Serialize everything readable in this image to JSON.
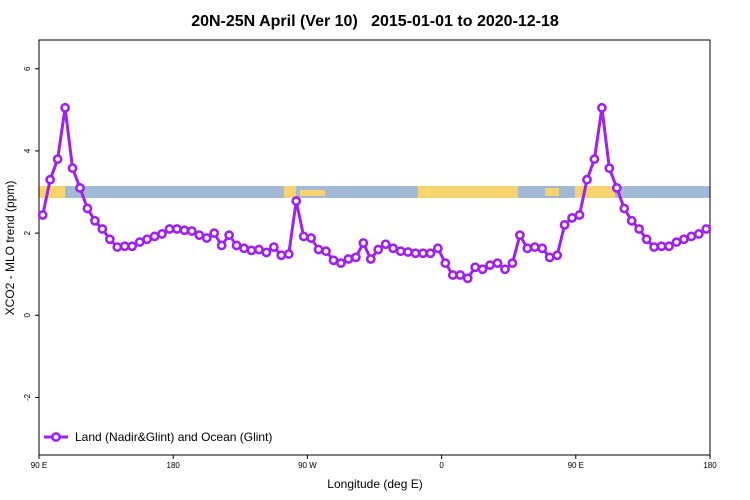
{
  "chart_data": {
    "type": "line",
    "title": "20N-25N April (Ver 10)   2015-01-01 to 2020-12-18",
    "x_label": "Longitude (deg E)",
    "y_label": "XCO2 - MLO trend (ppm)",
    "x": [
      92.5,
      97.5,
      102.5,
      107.5,
      112.5,
      117.5,
      122.5,
      127.5,
      132.5,
      137.5,
      142.5,
      147.5,
      152.5,
      157.5,
      162.5,
      167.5,
      172.5,
      177.5,
      182.5,
      187.5,
      192.5,
      197.5,
      202.5,
      207.5,
      212.5,
      217.5,
      222.5,
      227.5,
      232.5,
      237.5,
      242.5,
      247.5,
      252.5,
      257.5,
      262.5,
      267.5,
      272.5,
      277.5,
      282.5,
      287.5,
      292.5,
      297.5,
      302.5,
      307.5,
      312.5,
      317.5,
      322.5,
      327.5,
      332.5,
      337.5,
      342.5,
      347.5,
      352.5,
      357.5,
      362.5,
      367.5,
      372.5,
      377.5,
      382.5,
      387.5,
      392.5,
      397.5,
      402.5,
      407.5,
      412.5,
      417.5,
      422.5,
      427.5,
      432.5,
      437.5,
      442.5,
      447.5,
      452.5,
      457.5,
      462.5,
      467.5,
      472.5,
      477.5,
      482.5,
      487.5,
      492.5,
      497.5,
      502.5,
      507.5,
      512.5,
      517.5,
      522.5,
      527.5,
      532.5,
      537.5
    ],
    "series": [
      {
        "name": "Land (Nadir&Glint) and Ocean (Glint)",
        "color": "#a020f0",
        "values": [
          2.44,
          3.3,
          3.8,
          5.05,
          3.58,
          3.1,
          2.6,
          2.3,
          2.1,
          1.85,
          1.66,
          1.68,
          1.68,
          1.78,
          1.85,
          1.92,
          1.98,
          2.1,
          2.1,
          2.07,
          2.05,
          1.95,
          1.88,
          2.0,
          1.7,
          1.95,
          1.7,
          1.63,
          1.58,
          1.6,
          1.53,
          1.66,
          1.46,
          1.49,
          2.78,
          1.92,
          1.88,
          1.6,
          1.56,
          1.34,
          1.27,
          1.37,
          1.41,
          1.76,
          1.37,
          1.6,
          1.73,
          1.63,
          1.56,
          1.54,
          1.51,
          1.51,
          1.51,
          1.63,
          1.27,
          0.98,
          0.98,
          0.9,
          1.17,
          1.12,
          1.22,
          1.27,
          1.12,
          1.27,
          1.95,
          1.63,
          1.66,
          1.63,
          1.41,
          1.46,
          2.2,
          2.37,
          2.44,
          3.3,
          3.8,
          5.05,
          3.58,
          3.1,
          2.6,
          2.3,
          2.1,
          1.85,
          1.66,
          1.68,
          1.68,
          1.78,
          1.85,
          1.92,
          1.98,
          2.1
        ]
      }
    ],
    "xlim": [
      90,
      540
    ],
    "xticks": [
      {
        "value": 90,
        "label": "90 E"
      },
      180,
      {
        "value": 270,
        "label": "90 W"
      },
      {
        "value": 360,
        "label": "0"
      },
      {
        "value": 450,
        "label": "90 E"
      },
      {
        "value": 540,
        "label": "180"
      }
    ],
    "ylim": [
      -3.4,
      6.7
    ],
    "yticks": [
      -2,
      0,
      2,
      4,
      6
    ],
    "legend": "bottom-left"
  }
}
